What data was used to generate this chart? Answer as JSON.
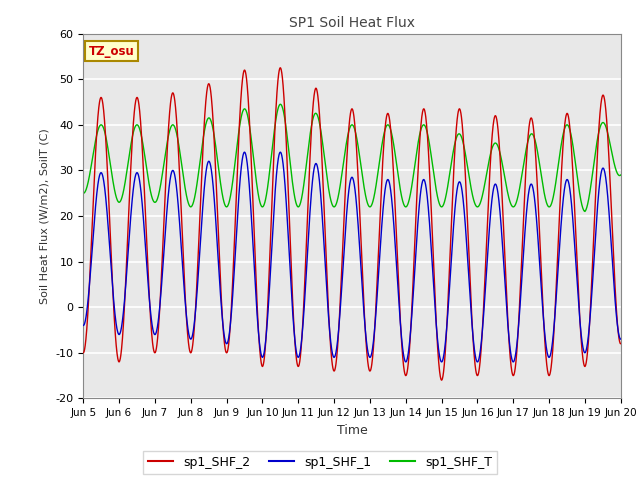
{
  "title": "SP1 Soil Heat Flux",
  "xlabel": "Time",
  "ylabel": "Soil Heat Flux (W/m2), SoilT (C)",
  "ylim": [
    -20,
    60
  ],
  "yticks": [
    -20,
    -10,
    0,
    10,
    20,
    30,
    40,
    50,
    60
  ],
  "xtick_labels": [
    "Jun 5",
    "Jun 6",
    "Jun 7",
    "Jun 8",
    "Jun 9",
    "Jun 10",
    "Jun 11",
    "Jun 12",
    "Jun 13",
    "Jun 14",
    "Jun 15",
    "Jun 16",
    "Jun 17",
    "Jun 18",
    "Jun 19",
    "Jun 20"
  ],
  "color_shf2": "#cc0000",
  "color_shf1": "#0000cc",
  "color_shft": "#00bb00",
  "legend_labels": [
    "sp1_SHF_2",
    "sp1_SHF_1",
    "sp1_SHF_T"
  ],
  "tz_label": "TZ_osu",
  "plot_bg": "#e8e8e8",
  "n_days": 15,
  "points_per_day": 200
}
